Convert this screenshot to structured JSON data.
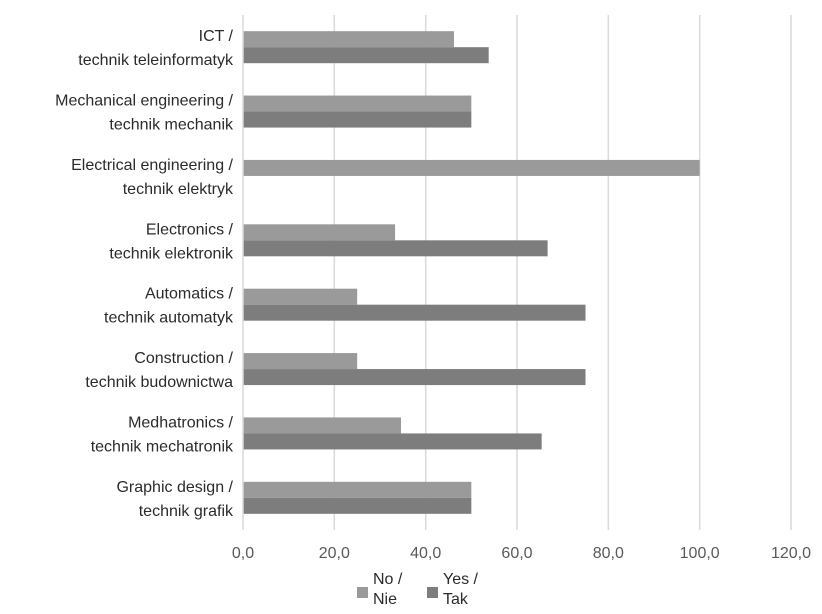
{
  "chart_data": {
    "type": "bar",
    "orientation": "horizontal",
    "categories": [
      [
        "ICT /",
        "technik teleinformatyk"
      ],
      [
        "Mechanical engineering /",
        "technik mechanik"
      ],
      [
        "Electrical engineering /",
        "technik elektryk"
      ],
      [
        "Electronics /",
        "technik elektronik"
      ],
      [
        "Automatics /",
        "technik automatyk"
      ],
      [
        "Construction /",
        "technik budownictwa"
      ],
      [
        "Medhatronics /",
        "technik mechatronik"
      ],
      [
        "Graphic design /",
        "technik grafik"
      ]
    ],
    "series": [
      {
        "name": [
          "No /",
          "Nie"
        ],
        "color": "#9a9a9a",
        "values": [
          46.2,
          50.0,
          100.0,
          33.3,
          25.0,
          25.0,
          34.6,
          50.0
        ]
      },
      {
        "name": [
          "Yes /",
          "Tak"
        ],
        "color": "#7d7d7d",
        "values": [
          53.8,
          50.0,
          0.0,
          66.7,
          75.0,
          75.0,
          65.4,
          50.0
        ]
      }
    ],
    "xlim": [
      0,
      120
    ],
    "xticks": [
      "0,0",
      "20,0",
      "40,0",
      "60,0",
      "80,0",
      "100,0",
      "120,0"
    ],
    "xtick_values": [
      0,
      20,
      40,
      60,
      80,
      100,
      120
    ],
    "grid": "vertical",
    "legend": "bottom",
    "title": "",
    "xlabel": "",
    "ylabel": ""
  }
}
